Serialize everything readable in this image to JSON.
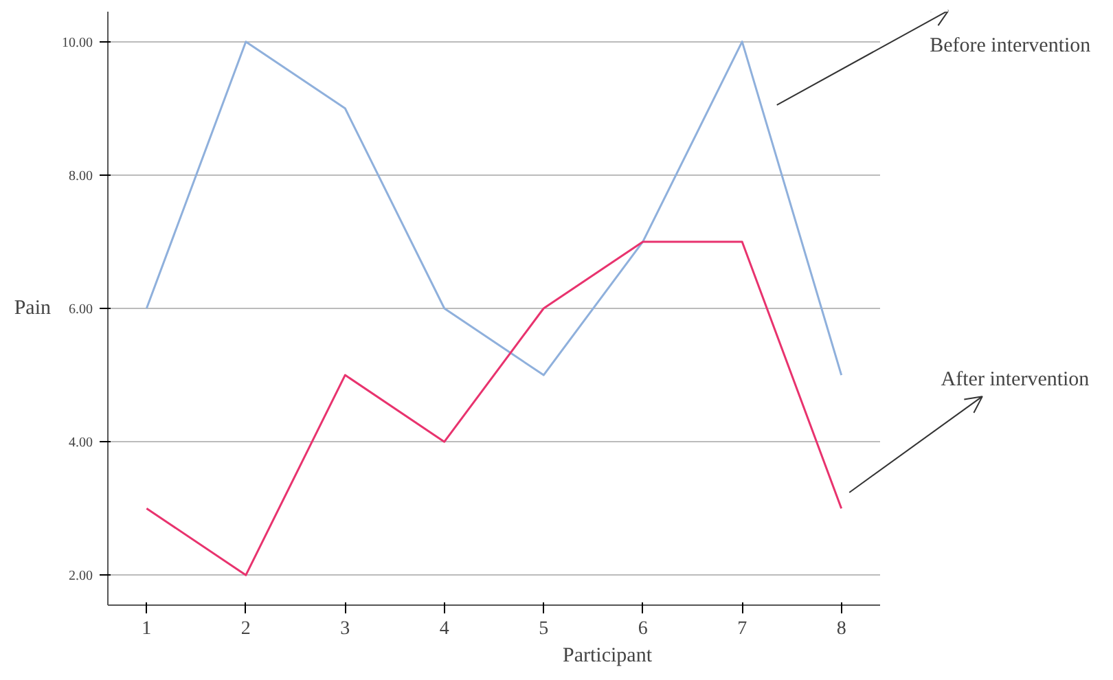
{
  "chart_data": {
    "type": "line",
    "xlabel": "Participant",
    "ylabel": "Pain",
    "x": [
      1,
      2,
      3,
      4,
      5,
      6,
      7,
      8
    ],
    "series": [
      {
        "name": "Before intervention",
        "color": "#8fb0dc",
        "values": [
          6,
          10,
          9,
          6,
          5,
          7,
          10,
          5
        ]
      },
      {
        "name": "After intervention",
        "color": "#e8336e",
        "values": [
          3,
          2,
          5,
          4,
          6,
          7,
          7,
          3
        ]
      }
    ],
    "xlim": [
      0.61,
      8.39
    ],
    "ylim": [
      1.55,
      10.45
    ],
    "xticks": [
      1,
      2,
      3,
      4,
      5,
      6,
      7,
      8
    ],
    "yticks": [
      {
        "value": 2,
        "label": "2.00"
      },
      {
        "value": 4,
        "label": "4.00"
      },
      {
        "value": 6,
        "label": "6.00"
      },
      {
        "value": 8,
        "label": "8.00"
      },
      {
        "value": 10,
        "label": "10.00"
      }
    ],
    "grid": "y",
    "marker": "none",
    "line_style": "solid"
  }
}
